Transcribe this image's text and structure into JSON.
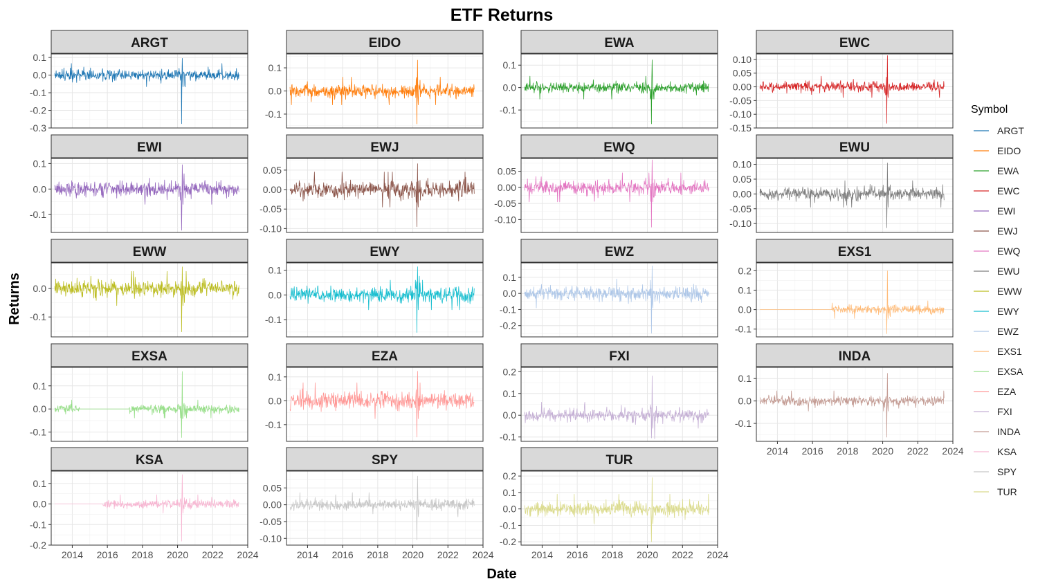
{
  "chart_data": {
    "type": "line",
    "title": "ETF Returns",
    "xlabel": "Date",
    "ylabel": "Returns",
    "legend_title": "Symbol",
    "legend_position": "right",
    "grid": true,
    "xlim": [
      2012.8,
      2024.0
    ],
    "x_ticks": [
      "2014",
      "2016",
      "2018",
      "2020",
      "2022",
      "2024"
    ],
    "data_range": {
      "start": "2013-01",
      "end": "2023-06"
    },
    "series": [
      {
        "name": "ARGT",
        "color": "#1f77b4",
        "ylim": [
          -0.3,
          0.12
        ],
        "y_ticks": [
          "0.1",
          "0.0",
          "-0.1",
          "-0.2",
          "-0.3"
        ],
        "typical_abs_return": 0.022,
        "min": -0.29,
        "max": 0.1
      },
      {
        "name": "EIDO",
        "color": "#ff7f0e",
        "ylim": [
          -0.16,
          0.16
        ],
        "y_ticks": [
          "0.1",
          "0.0",
          "-0.1"
        ],
        "typical_abs_return": 0.02,
        "min": -0.15,
        "max": 0.14
      },
      {
        "name": "EWA",
        "color": "#2ca02c",
        "ylim": [
          -0.18,
          0.15
        ],
        "y_ticks": [
          "0.1",
          "0.0",
          "-0.1"
        ],
        "typical_abs_return": 0.017,
        "min": -0.17,
        "max": 0.13
      },
      {
        "name": "EWC",
        "color": "#d62728",
        "ylim": [
          -0.15,
          0.12
        ],
        "y_ticks": [
          "0.10",
          "0.05",
          "0.00",
          "-0.05",
          "-0.10",
          "-0.15"
        ],
        "typical_abs_return": 0.013,
        "min": -0.14,
        "max": 0.12
      },
      {
        "name": "EWI",
        "color": "#9467bd",
        "ylim": [
          -0.17,
          0.12
        ],
        "y_ticks": [
          "0.1",
          "0.0",
          "-0.1"
        ],
        "typical_abs_return": 0.02,
        "min": -0.17,
        "max": 0.1
      },
      {
        "name": "EWJ",
        "color": "#8c564b",
        "ylim": [
          -0.11,
          0.08
        ],
        "y_ticks": [
          "0.05",
          "0.00",
          "-0.05",
          "-0.10"
        ],
        "typical_abs_return": 0.015,
        "min": -0.1,
        "max": 0.07
      },
      {
        "name": "EWQ",
        "color": "#e377c2",
        "ylim": [
          -0.14,
          0.09
        ],
        "y_ticks": [
          "0.05",
          "0.00",
          "-0.05",
          "-0.10"
        ],
        "typical_abs_return": 0.015,
        "min": -0.13,
        "max": 0.09
      },
      {
        "name": "EWU",
        "color": "#7f7f7f",
        "ylim": [
          -0.13,
          0.12
        ],
        "y_ticks": [
          "0.10",
          "0.05",
          "0.00",
          "-0.05",
          "-0.10"
        ],
        "typical_abs_return": 0.015,
        "min": -0.12,
        "max": 0.11
      },
      {
        "name": "EWW",
        "color": "#bcbd22",
        "ylim": [
          -0.17,
          0.09
        ],
        "y_ticks": [
          "0.0",
          "-0.1"
        ],
        "typical_abs_return": 0.02,
        "min": -0.16,
        "max": 0.08
      },
      {
        "name": "EWY",
        "color": "#17becf",
        "ylim": [
          -0.17,
          0.13
        ],
        "y_ticks": [
          "0.1",
          "0.0",
          "-0.1"
        ],
        "typical_abs_return": 0.02,
        "min": -0.16,
        "max": 0.12
      },
      {
        "name": "EWZ",
        "color": "#aec7e8",
        "ylim": [
          -0.27,
          0.19
        ],
        "y_ticks": [
          "0.1",
          "0.0",
          "-0.1",
          "-0.2"
        ],
        "typical_abs_return": 0.03,
        "min": -0.26,
        "max": 0.18
      },
      {
        "name": "EXS1",
        "color": "#ffbb78",
        "ylim": [
          -0.14,
          0.24
        ],
        "y_ticks": [
          "0.2",
          "0.1",
          "0.0",
          "-0.1"
        ],
        "typical_abs_return": 0.015,
        "min": -0.13,
        "max": 0.21
      },
      {
        "name": "EXSA",
        "color": "#98df8a",
        "ylim": [
          -0.14,
          0.18
        ],
        "y_ticks": [
          "0.1",
          "0.0",
          "-0.1"
        ],
        "typical_abs_return": 0.013,
        "min": -0.13,
        "max": 0.17
      },
      {
        "name": "EZA",
        "color": "#ff9896",
        "ylim": [
          -0.17,
          0.14
        ],
        "y_ticks": [
          "0.1",
          "0.0",
          "-0.1"
        ],
        "typical_abs_return": 0.025,
        "min": -0.16,
        "max": 0.13
      },
      {
        "name": "FXI",
        "color": "#c5b0d5",
        "ylim": [
          -0.12,
          0.22
        ],
        "y_ticks": [
          "0.2",
          "0.1",
          "0.0",
          "-0.1"
        ],
        "typical_abs_return": 0.02,
        "min": -0.11,
        "max": 0.19
      },
      {
        "name": "INDA",
        "color": "#c49c94",
        "ylim": [
          -0.18,
          0.15
        ],
        "y_ticks": [
          "0.1",
          "0.0",
          "-0.1"
        ],
        "typical_abs_return": 0.015,
        "min": -0.17,
        "max": 0.13
      },
      {
        "name": "KSA",
        "color": "#f7b6d2",
        "ylim": [
          -0.2,
          0.16
        ],
        "y_ticks": [
          "0.1",
          "0.0",
          "-0.1",
          "-0.2"
        ],
        "typical_abs_return": 0.015,
        "min": -0.19,
        "max": 0.15
      },
      {
        "name": "SPY",
        "color": "#c7c7c7",
        "ylim": [
          -0.12,
          0.1
        ],
        "y_ticks": [
          "0.05",
          "0.00",
          "-0.05",
          "-0.10"
        ],
        "typical_abs_return": 0.012,
        "min": -0.11,
        "max": 0.09
      },
      {
        "name": "TUR",
        "color": "#dbdb8d",
        "ylim": [
          -0.22,
          0.23
        ],
        "y_ticks": [
          "0.2",
          "0.1",
          "0.0",
          "-0.1",
          "-0.2"
        ],
        "typical_abs_return": 0.03,
        "min": -0.21,
        "max": 0.2
      }
    ]
  }
}
